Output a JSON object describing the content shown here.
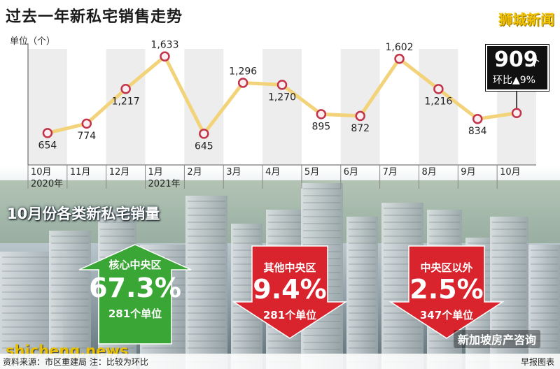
{
  "header": {
    "title": "过去一年新私宅销售走势",
    "brand": "狮城新闻",
    "unit_label": "单位（个）"
  },
  "callout": {
    "value": "909",
    "unit": "个",
    "mom_text": "环比▲9%"
  },
  "chart_data": {
    "type": "line",
    "categories": [
      "10月\n2020年",
      "11月",
      "12月",
      "1月\n2021年",
      "2月",
      "3月",
      "4月",
      "5月",
      "6月",
      "7月",
      "8月",
      "9月",
      "10月"
    ],
    "series": [
      {
        "values": [
          654,
          774,
          1217,
          1633,
          645,
          1296,
          1270,
          895,
          872,
          1602,
          1216,
          834,
          909
        ]
      }
    ],
    "ylim": [
      300,
      1800
    ],
    "grid": false,
    "colors": {
      "line": "#f3d37a",
      "marker_stroke": "#c2344a",
      "band": "#e6e6e6"
    }
  },
  "section_title": "10月份各类新私宅销量",
  "segments": [
    {
      "label": "核心中央区",
      "percent": "67.3%",
      "count": "281个单位",
      "direction": "up",
      "color": "#3aa635"
    },
    {
      "label": "其他中央区",
      "percent": "9.4%",
      "count": "281个单位",
      "direction": "down",
      "color": "#d9232d"
    },
    {
      "label": "中央区以外",
      "percent": "2.5%",
      "count": "347个单位",
      "direction": "down",
      "color": "#d9232d"
    }
  ],
  "footer": {
    "source": "资料来源：市区重建局   注：比较为环比",
    "publisher": "早报图表"
  },
  "watermarks": {
    "left": "shicheng.news",
    "right": "新加坡房产咨询"
  }
}
